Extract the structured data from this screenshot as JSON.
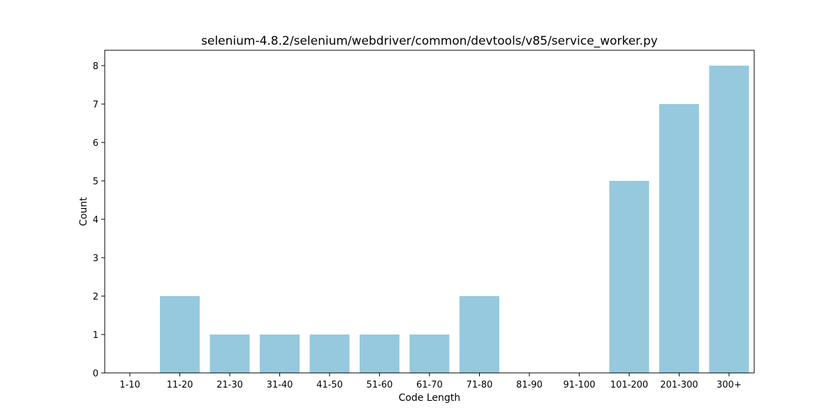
{
  "chart_data": {
    "type": "bar",
    "title": "selenium-4.8.2/selenium/webdriver/common/devtools/v85/service_worker.py",
    "xlabel": "Code Length",
    "ylabel": "Count",
    "categories": [
      "1-10",
      "11-20",
      "21-30",
      "31-40",
      "41-50",
      "51-60",
      "61-70",
      "71-80",
      "81-90",
      "91-100",
      "101-200",
      "201-300",
      "300+"
    ],
    "values": [
      0,
      2,
      1,
      1,
      1,
      1,
      1,
      2,
      0,
      0,
      5,
      7,
      8
    ],
    "ylim": [
      0,
      8.4
    ],
    "yticks": [
      0,
      1,
      2,
      3,
      4,
      5,
      6,
      7,
      8
    ],
    "bar_color": "#96c9de",
    "grid": false,
    "legend": "none"
  }
}
